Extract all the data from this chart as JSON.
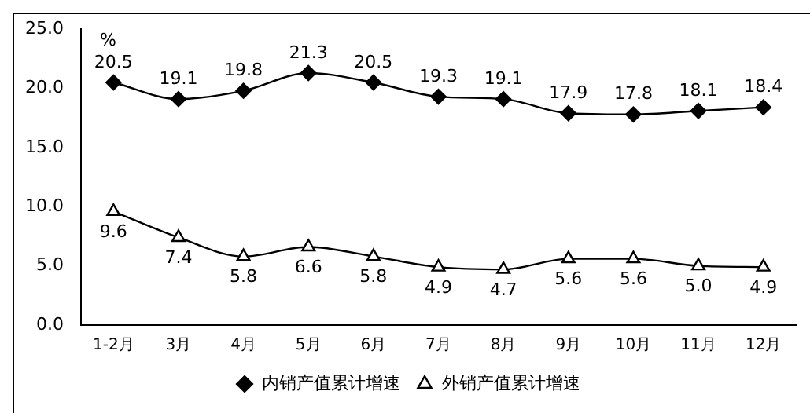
{
  "chart_data": {
    "type": "line",
    "ylabel": "%",
    "categories": [
      "1-2月",
      "3月",
      "4月",
      "5月",
      "6月",
      "7月",
      "8月",
      "9月",
      "10月",
      "11月",
      "12月"
    ],
    "ylim": [
      0,
      25
    ],
    "yticks": [
      {
        "value": 0,
        "label": "0.0"
      },
      {
        "value": 5,
        "label": "5.0"
      },
      {
        "value": 10,
        "label": "10.0"
      },
      {
        "value": 15,
        "label": "15.0"
      },
      {
        "value": 20,
        "label": "20.0"
      },
      {
        "value": 25,
        "label": "25.0"
      }
    ],
    "grid": false,
    "legend": "bottom",
    "line_style": "solid",
    "series": [
      {
        "name": "内销产值累计增速",
        "color": "#000000",
        "marker": "diamond",
        "values": [
          20.5,
          19.1,
          19.8,
          21.3,
          20.5,
          19.3,
          19.1,
          17.9,
          17.8,
          18.1,
          18.4
        ],
        "value_labels": [
          "20.5",
          "19.1",
          "19.8",
          "21.3",
          "20.5",
          "19.3",
          "19.1",
          "17.9",
          "17.8",
          "18.1",
          "18.4"
        ]
      },
      {
        "name": "外销产值累计增速",
        "color": "#000000",
        "marker": "triangle",
        "values": [
          9.6,
          7.4,
          5.8,
          6.6,
          5.8,
          4.9,
          4.7,
          5.6,
          5.6,
          5.0,
          4.9
        ],
        "value_labels": [
          "9.6",
          "7.4",
          "5.8",
          "6.6",
          "5.8",
          "4.9",
          "4.7",
          "5.6",
          "5.6",
          "5.0",
          "4.9"
        ]
      }
    ]
  }
}
